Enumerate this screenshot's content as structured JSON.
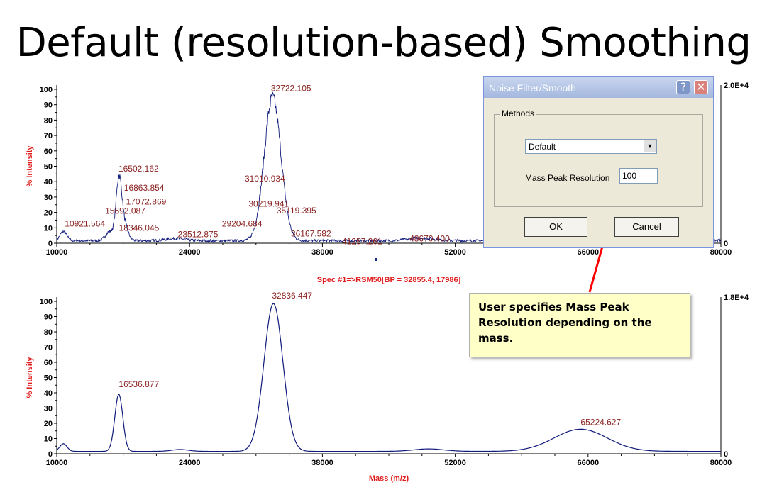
{
  "title": "Default (resolution-based) Smoothing",
  "dialog": {
    "title": "Noise Filter/Smooth",
    "help_glyph": "?",
    "close_glyph": "✕",
    "methods_label": "Methods",
    "method_selected": "Default",
    "resolution_label": "Mass Peak Resolution",
    "resolution_value": "100",
    "ok_label": "OK",
    "cancel_label": "Cancel"
  },
  "callout": {
    "text": "User specifies Mass Peak Resolution depending on the mass."
  },
  "colors": {
    "trace": "#0f1a7a",
    "peak_label": "#8b2323",
    "axis_label": "#e01b1b",
    "arrow": "#ff0000",
    "callout_bg": "#ffffc8"
  },
  "chart_data": [
    {
      "type": "line",
      "panel": "top-raw",
      "xlim": [
        10000,
        80000
      ],
      "ylim": [
        0,
        100
      ],
      "x_ticks": [
        "10000",
        "24000",
        "38000",
        "52000",
        "66000",
        "80000"
      ],
      "y_ticks": [
        "0",
        "10",
        "20",
        "30",
        "40",
        "50",
        "60",
        "70",
        "80",
        "90",
        "100"
      ],
      "ylabel": "% Intensity",
      "right_axis": {
        "top": "2.0E+4",
        "bottom": "0"
      },
      "noisy": true,
      "peaks": [
        {
          "x": 10921.564,
          "y": 9,
          "label": "10921.564"
        },
        {
          "x": 15692.087,
          "y": 20,
          "label": "15692.087"
        },
        {
          "x": 16502.162,
          "y": 42,
          "label": "16502.162"
        },
        {
          "x": 16863.854,
          "y": 34,
          "label": "16863.854"
        },
        {
          "x": 17072.869,
          "y": 26,
          "label": "17072.869"
        },
        {
          "x": 18346.045,
          "y": 8,
          "label": "18346.045"
        },
        {
          "x": 23512.875,
          "y": 4,
          "label": "23512.875"
        },
        {
          "x": 29204.684,
          "y": 9,
          "label": "29204.684"
        },
        {
          "x": 30219.941,
          "y": 22,
          "label": "30219.941"
        },
        {
          "x": 31010.934,
          "y": 40,
          "label": "31010.934"
        },
        {
          "x": 32722.105,
          "y": 97,
          "label": "32722.105"
        },
        {
          "x": 35119.395,
          "y": 23,
          "label": "35119.395"
        },
        {
          "x": 36167.582,
          "y": 8,
          "label": "36167.582"
        },
        {
          "x": 41257.261,
          "y": 3,
          "label": "41257.261"
        },
        {
          "x": 48670.4,
          "y": 4,
          "label": "48670.400"
        }
      ]
    },
    {
      "type": "line",
      "panel": "bottom-smoothed",
      "title": "Spec #1=>RSM50[BP = 32855.4, 17986]",
      "xlim": [
        10000,
        80000
      ],
      "ylim": [
        0,
        100
      ],
      "x_ticks": [
        "10000",
        "24000",
        "38000",
        "52000",
        "66000",
        "80000"
      ],
      "y_ticks": [
        "0",
        "10",
        "20",
        "30",
        "40",
        "50",
        "60",
        "70",
        "80",
        "90",
        "100"
      ],
      "xlabel": "Mass (m/z)",
      "ylabel": "% Intensity",
      "right_axis": {
        "top": "1.8E+4",
        "bottom": "0"
      },
      "noisy": false,
      "peaks": [
        {
          "x": 16536.877,
          "y": 39,
          "label": "16536.877"
        },
        {
          "x": 32836.447,
          "y": 100,
          "label": "32836.447"
        },
        {
          "x": 65224.627,
          "y": 16,
          "label": "65224.627"
        }
      ]
    }
  ]
}
